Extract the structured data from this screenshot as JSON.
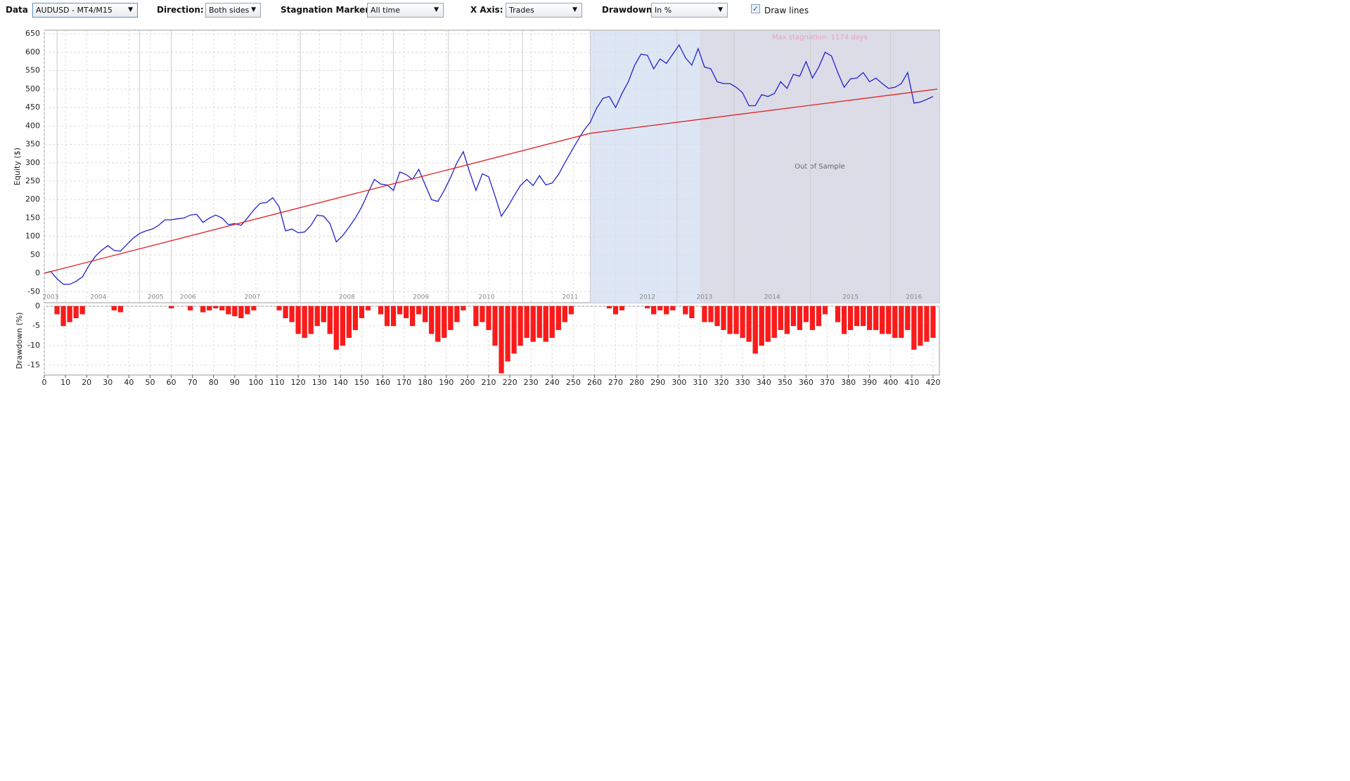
{
  "toolbar": {
    "controls": [
      {
        "label": "Data",
        "value": "AUDUSD - MT4/M15"
      },
      {
        "label": "Direction:",
        "value": "Both sides"
      },
      {
        "label": "Stagnation Marker:",
        "value": "All time"
      },
      {
        "label": "X Axis:",
        "value": "Trades"
      },
      {
        "label": "Drawdown:",
        "value": "In %"
      }
    ],
    "checkbox": {
      "label": "Draw lines",
      "checked": true
    }
  },
  "chart_data": [
    {
      "type": "line",
      "ylabel": "Equity ($)",
      "ylim": [
        -80,
        660
      ],
      "yticks": [
        -50,
        0,
        50,
        100,
        150,
        200,
        250,
        300,
        350,
        400,
        450,
        500,
        550,
        600,
        650
      ],
      "grid": true,
      "annotations": {
        "stagnation": "Max stagnation: 1174 days"
      },
      "regions": [
        {
          "x": [
            258,
            310
          ]
        },
        {
          "x": [
            310,
            423
          ],
          "label": "Out of Sample"
        }
      ],
      "year_lines": [
        6,
        45,
        60,
        121,
        165,
        191,
        226,
        258,
        299,
        326,
        362,
        400
      ],
      "years": {
        "labels": [
          "2003",
          "2004",
          "2005",
          "2006",
          "2007",
          "2008",
          "2009",
          "2010",
          "2011",
          "2012",
          "2013",
          "2014",
          "2015",
          "2016"
        ],
        "x": [
          3,
          25.5,
          52.6,
          67.9,
          98.3,
          143,
          178,
          209,
          248.5,
          285,
          312,
          344,
          381,
          411
        ]
      },
      "series": [
        {
          "color": "#2222cc",
          "x": [
            0,
            3,
            6,
            9,
            12,
            15,
            18,
            21,
            24,
            27,
            30,
            33,
            36,
            39,
            42,
            45,
            48,
            51,
            54,
            57,
            60,
            63,
            66,
            69,
            72,
            75,
            78,
            81,
            84,
            87,
            90,
            93,
            96,
            99,
            102,
            105,
            108,
            111,
            114,
            117,
            120,
            123,
            126,
            129,
            132,
            135,
            138,
            141,
            144,
            147,
            150,
            153,
            156,
            159,
            162,
            165,
            168,
            171,
            174,
            177,
            180,
            183,
            186,
            189,
            192,
            195,
            198,
            201,
            204,
            207,
            210,
            213,
            216,
            219,
            222,
            225,
            228,
            231,
            234,
            237,
            240,
            243,
            246,
            249,
            252,
            255,
            258,
            261,
            264,
            267,
            270,
            273,
            276,
            279,
            282,
            285,
            288,
            291,
            294,
            297,
            300,
            303,
            306,
            309,
            312,
            315,
            318,
            321,
            324,
            327,
            330,
            333,
            336,
            339,
            342,
            345,
            348,
            351,
            354,
            357,
            360,
            363,
            366,
            369,
            372,
            375,
            378,
            381,
            384,
            387,
            390,
            393,
            396,
            399,
            402,
            405,
            408,
            411,
            414,
            417,
            420
          ],
          "values": [
            0,
            5,
            -15,
            -30,
            -30,
            -22,
            -10,
            20,
            45,
            62,
            75,
            62,
            60,
            78,
            95,
            108,
            115,
            120,
            130,
            145,
            145,
            148,
            150,
            158,
            160,
            138,
            150,
            158,
            150,
            132,
            135,
            130,
            150,
            172,
            190,
            192,
            205,
            180,
            115,
            120,
            110,
            112,
            130,
            158,
            155,
            135,
            85,
            102,
            125,
            150,
            180,
            218,
            255,
            242,
            240,
            225,
            275,
            268,
            255,
            282,
            240,
            200,
            195,
            225,
            260,
            300,
            330,
            275,
            225,
            270,
            262,
            210,
            155,
            180,
            210,
            238,
            255,
            238,
            265,
            240,
            245,
            268,
            300,
            330,
            360,
            388,
            410,
            448,
            475,
            480,
            450,
            488,
            520,
            565,
            595,
            592,
            555,
            582,
            570,
            595,
            620,
            585,
            565,
            610,
            560,
            555,
            520,
            515,
            515,
            505,
            490,
            455,
            455,
            485,
            480,
            488,
            520,
            502,
            540,
            535,
            575,
            530,
            560,
            600,
            590,
            545,
            505,
            528,
            530,
            545,
            520,
            530,
            515,
            502,
            505,
            515,
            545,
            462,
            465,
            472,
            480
          ]
        },
        {
          "color": "#e02020",
          "x": [
            0,
            258,
            422
          ],
          "values": [
            0,
            380,
            500
          ]
        }
      ]
    },
    {
      "type": "bar",
      "ylabel": "Drawdown (%)",
      "color": "#ff1a1a",
      "xlim": [
        0,
        423
      ],
      "xticks": [
        0,
        10,
        20,
        30,
        40,
        50,
        60,
        70,
        80,
        90,
        100,
        110,
        120,
        130,
        140,
        150,
        160,
        170,
        180,
        190,
        200,
        210,
        220,
        230,
        240,
        250,
        260,
        270,
        280,
        290,
        300,
        310,
        320,
        330,
        340,
        350,
        360,
        370,
        380,
        390,
        400,
        410,
        420
      ],
      "ylim": [
        -17.5,
        0
      ],
      "yticks": [
        0,
        -5,
        -10,
        -15
      ],
      "grid": true,
      "x": [
        0,
        3,
        6,
        9,
        12,
        15,
        18,
        21,
        24,
        27,
        30,
        33,
        36,
        39,
        42,
        45,
        48,
        51,
        54,
        57,
        60,
        63,
        66,
        69,
        72,
        75,
        78,
        81,
        84,
        87,
        90,
        93,
        96,
        99,
        102,
        105,
        108,
        111,
        114,
        117,
        120,
        123,
        126,
        129,
        132,
        135,
        138,
        141,
        144,
        147,
        150,
        153,
        156,
        159,
        162,
        165,
        168,
        171,
        174,
        177,
        180,
        183,
        186,
        189,
        192,
        195,
        198,
        201,
        204,
        207,
        210,
        213,
        216,
        219,
        222,
        225,
        228,
        231,
        234,
        237,
        240,
        243,
        246,
        249,
        252,
        255,
        258,
        261,
        264,
        267,
        270,
        273,
        276,
        279,
        282,
        285,
        288,
        291,
        294,
        297,
        300,
        303,
        306,
        309,
        312,
        315,
        318,
        321,
        324,
        327,
        330,
        333,
        336,
        339,
        342,
        345,
        348,
        351,
        354,
        357,
        360,
        363,
        366,
        369,
        372,
        375,
        378,
        381,
        384,
        387,
        390,
        393,
        396,
        399,
        402,
        405,
        408,
        411,
        414,
        417,
        420
      ],
      "values": [
        0,
        0,
        -2,
        -5,
        -4,
        -3,
        -2,
        0,
        0,
        0,
        0,
        -1,
        -1.5,
        0,
        0,
        0,
        0,
        0,
        0,
        0,
        -0.5,
        0,
        0,
        -1,
        0,
        -1.5,
        -1,
        -0.5,
        -1,
        -2,
        -2.5,
        -3,
        -2,
        -1,
        0,
        0,
        0,
        -1,
        -3,
        -4,
        -7,
        -8,
        -7,
        -5,
        -4,
        -7,
        -11,
        -10,
        -8,
        -6,
        -3,
        -1,
        0,
        -2,
        -5,
        -5,
        -2,
        -3,
        -5,
        -2,
        -4,
        -7,
        -9,
        -8,
        -6,
        -4,
        -1,
        0,
        -5,
        -4,
        -6,
        -10,
        -17,
        -14,
        -12,
        -10,
        -8,
        -9,
        -8,
        -9,
        -8,
        -6,
        -4,
        -2,
        0,
        0,
        0,
        0,
        0,
        -0.5,
        -2,
        -1,
        0,
        0,
        0,
        -0.5,
        -2,
        -1,
        -2,
        -1,
        0,
        -2,
        -3,
        0,
        -4,
        -4,
        -5,
        -6,
        -7,
        -7,
        -8,
        -9,
        -12,
        -10,
        -9,
        -8,
        -6,
        -7,
        -5,
        -6,
        -4,
        -6,
        -5,
        -2,
        0,
        -4,
        -7,
        -6,
        -5,
        -5,
        -6,
        -6,
        -7,
        -7,
        -8,
        -8,
        -6,
        -11,
        -10,
        -9,
        -8
      ]
    }
  ]
}
